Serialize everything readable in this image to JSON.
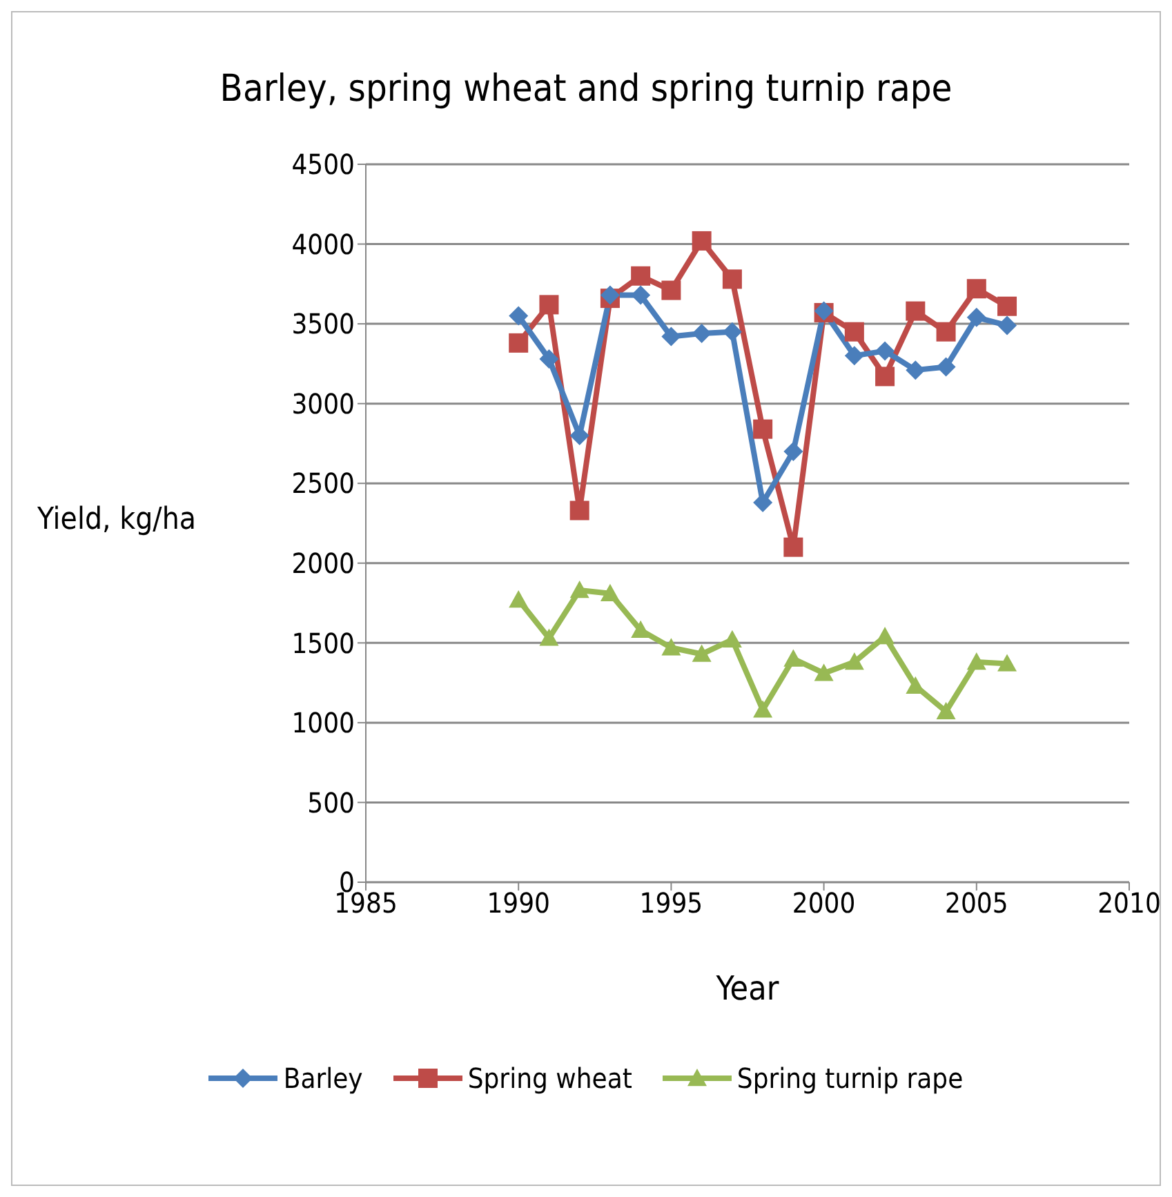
{
  "chart_data": {
    "type": "line",
    "title": "Barley, spring wheat and spring turnip rape",
    "xlabel": "Year",
    "ylabel": "Yield, kg/ha",
    "x": [
      1990,
      1991,
      1992,
      1993,
      1994,
      1995,
      1996,
      1997,
      1998,
      1999,
      2000,
      2001,
      2002,
      2003,
      2004,
      2005,
      2006
    ],
    "series": [
      {
        "name": "Barley",
        "color": "#4a7ebb",
        "marker": "diamond",
        "values": [
          3550,
          3280,
          2800,
          3680,
          3680,
          3420,
          3440,
          3450,
          2380,
          2700,
          3580,
          3300,
          3330,
          3210,
          3230,
          3540,
          3490
        ]
      },
      {
        "name": "Spring wheat",
        "color": "#be4b48",
        "marker": "square",
        "values": [
          3380,
          3620,
          2330,
          3660,
          3800,
          3710,
          4020,
          3780,
          2840,
          2100,
          3570,
          3450,
          3170,
          3580,
          3450,
          3720,
          3610
        ]
      },
      {
        "name": "Spring turnip rape",
        "color": "#98b954",
        "marker": "triangle",
        "values": [
          1770,
          1530,
          1830,
          1810,
          1580,
          1470,
          1430,
          1520,
          1080,
          1400,
          1310,
          1380,
          1540,
          1230,
          1070,
          1380,
          1370
        ]
      }
    ],
    "xlim": [
      1985,
      2010
    ],
    "xticks": [
      1985,
      1990,
      1995,
      2000,
      2005,
      2010
    ],
    "ylim": [
      0,
      4500
    ],
    "yticks": [
      0,
      500,
      1000,
      1500,
      2000,
      2500,
      3000,
      3500,
      4000,
      4500
    ],
    "grid": "y",
    "legend": "bottom",
    "line_style": "solid"
  }
}
